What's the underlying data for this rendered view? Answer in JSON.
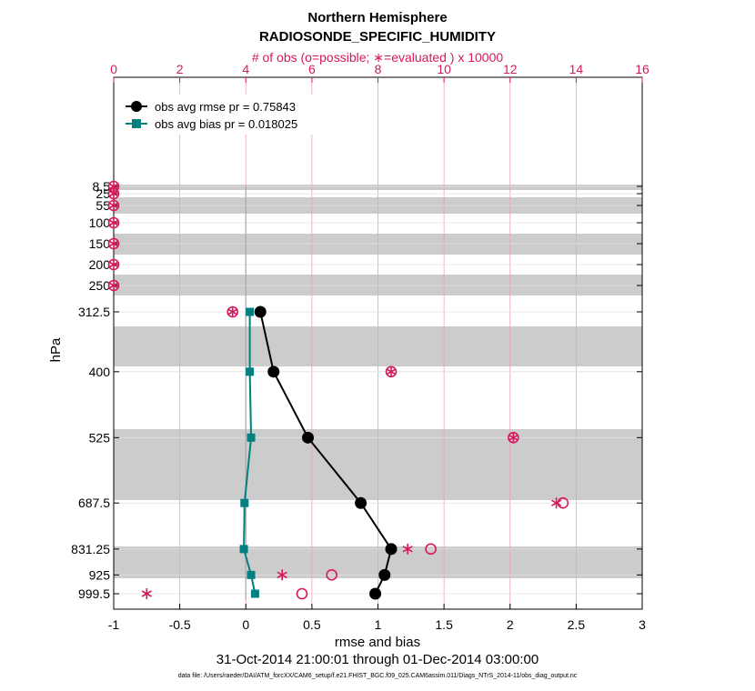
{
  "chart_data": {
    "type": "line",
    "title": "Northern Hemisphere",
    "subtitle": "RADIOSONDE_SPECIFIC_HUMIDITY",
    "top_axis_label": "# of obs (o=possible; ∗=evaluated ) x 10000",
    "top_xlim": [
      0,
      16
    ],
    "top_ticks": [
      "0",
      "2",
      "4",
      "6",
      "8",
      "10",
      "12",
      "14",
      "16"
    ],
    "xlabel": "rmse and bias",
    "xlim": [
      -1,
      3
    ],
    "x_ticks": [
      "-1",
      "-0.5",
      "0",
      "0.5",
      "1",
      "1.5",
      "2",
      "2.5",
      "3"
    ],
    "ylabel": "hPa",
    "y_levels": [
      "8.5",
      "25",
      "55",
      "100",
      "150",
      "200",
      "250",
      "312.5",
      "400",
      "525",
      "687.5",
      "831.25",
      "925",
      "999.5"
    ],
    "series": [
      {
        "name": "obs avg rmse pr = 0.75843",
        "color": "#000000",
        "levels": [
          "312.5",
          "400",
          "525",
          "687.5",
          "831.25",
          "925",
          "999.5"
        ],
        "values": [
          0.11,
          0.21,
          0.47,
          0.87,
          1.1,
          1.05,
          0.98
        ]
      },
      {
        "name": "obs avg bias pr = 0.018025",
        "color": "#008080",
        "levels": [
          "312.5",
          "400",
          "525",
          "687.5",
          "831.25",
          "925",
          "999.5"
        ],
        "values": [
          0.03,
          0.03,
          0.04,
          -0.01,
          -0.015,
          0.04,
          0.07
        ]
      }
    ],
    "obs_counts_x10000": {
      "levels": [
        "8.5",
        "25",
        "55",
        "100",
        "150",
        "200",
        "250",
        "312.5",
        "400",
        "525",
        "687.5",
        "831.25",
        "925",
        "999.5"
      ],
      "possible": [
        0,
        0,
        0,
        0,
        0,
        0,
        0,
        3.6,
        8.4,
        12.1,
        13.6,
        9.6,
        6.6,
        5.7
      ],
      "evaluated": [
        0,
        0,
        0,
        0,
        0,
        0,
        0,
        3.6,
        8.4,
        12.1,
        13.4,
        8.9,
        5.1,
        1.0
      ]
    },
    "date_range": "31-Oct-2014 21:00:01 through 01-Dec-2014 03:00:00",
    "footnote": "data file: /Users/raeder/DAI/ATM_forcXX/CAM6_setup/f.e21.FHIST_BGC.f09_025.CAM6assim.011/Diags_NTrS_2014-11/obs_diag_output.nc",
    "colors": {
      "rmse": "#000000",
      "bias": "#008080",
      "obs": "#d6195e",
      "band": "#cccccc"
    }
  }
}
